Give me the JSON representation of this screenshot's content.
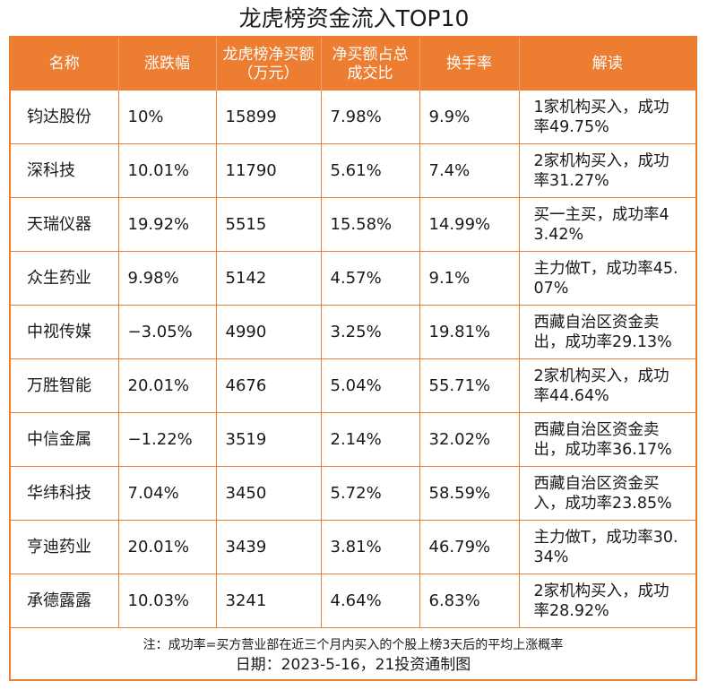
{
  "title": "龙虎榜资金流入TOP10",
  "colors": {
    "accent": "#ed7d31",
    "header_text": "#ffffff"
  },
  "headers": [
    "名称",
    "涨跌幅",
    "龙虎榜净买额（万元）",
    "净买额占总成交比",
    "换手率",
    "解读"
  ],
  "rows": [
    [
      "钧达股份",
      "10%",
      "15899",
      "7.98%",
      "9.9%",
      "1家机构买入，成功率49.75%"
    ],
    [
      "深科技",
      "10.01%",
      "11790",
      "5.61%",
      "7.4%",
      "2家机构买入，成功率31.27%"
    ],
    [
      "天瑞仪器",
      "19.92%",
      "5515",
      "15.58%",
      "14.99%",
      "买一主买，成功率43.42%"
    ],
    [
      "众生药业",
      "9.98%",
      "5142",
      "4.57%",
      "9.1%",
      "主力做T，成功率45.07%"
    ],
    [
      "中视传媒",
      "−3.05%",
      "4990",
      "3.25%",
      "19.81%",
      "西藏自治区资金卖出，成功率29.13%"
    ],
    [
      "万胜智能",
      "20.01%",
      "4676",
      "5.04%",
      "55.71%",
      "2家机构买入，成功率44.64%"
    ],
    [
      "中信金属",
      "−1.22%",
      "3519",
      "2.14%",
      "32.02%",
      "西藏自治区资金卖出，成功率36.17%"
    ],
    [
      "华纬科技",
      "7.04%",
      "3450",
      "5.72%",
      "58.59%",
      "西藏自治区资金买入，成功率23.85%"
    ],
    [
      "亨迪药业",
      "20.01%",
      "3439",
      "3.81%",
      "46.79%",
      "主力做T，成功率30.34%"
    ],
    [
      "承德露露",
      "10.03%",
      "3241",
      "4.64%",
      "6.83%",
      "2家机构买入，成功率28.92%"
    ]
  ],
  "footnote": "注：成功率=买方营业部在近三个月内买入的个股上榜3天后的平均上涨概率",
  "date_line": "日期：2023-5-16，21投资通制图"
}
